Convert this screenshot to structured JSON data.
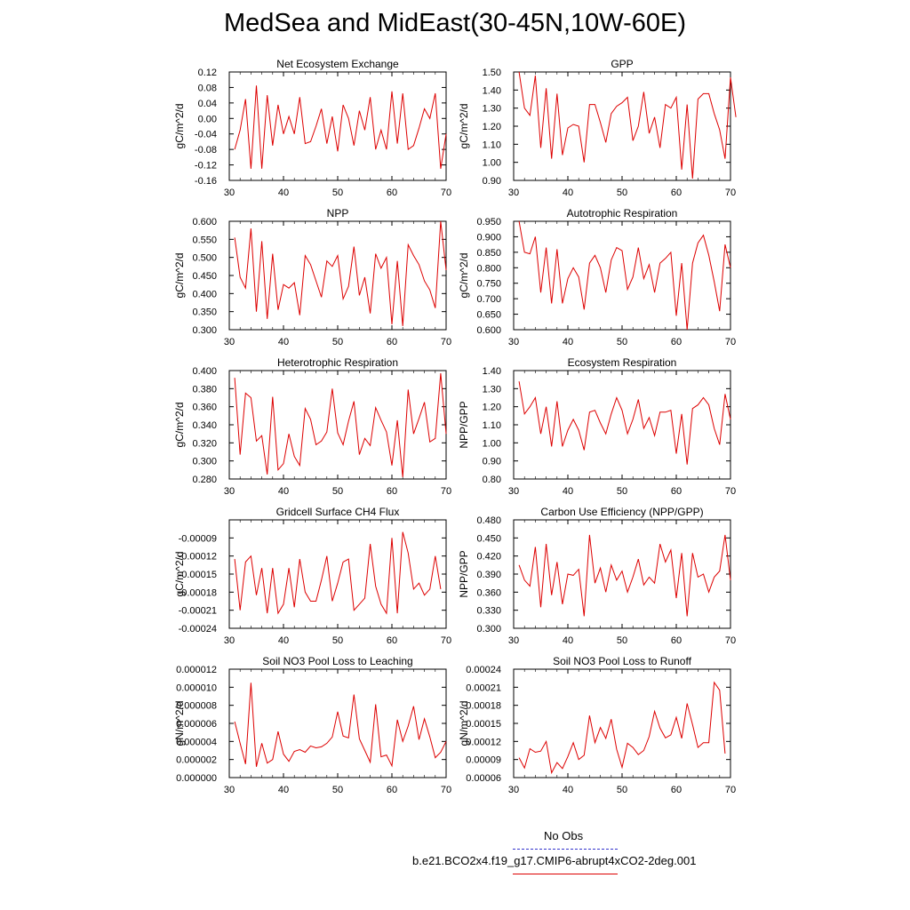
{
  "title": "MedSea and MidEast(30-45N,10W-60E)",
  "legend": {
    "obs_label": "No Obs",
    "obs_color": "#3333cc",
    "model_label": "b.e21.BCO2x4.f19_g17.CMIP6-abrupt4xCO2-2deg.001",
    "model_color": "#dd0000"
  },
  "chart_data": [
    {
      "type": "line",
      "title": "Net Ecosystem Exchange",
      "ylabel": "gC/m^2/d",
      "xlim": [
        30,
        70
      ],
      "ylim": [
        -0.16,
        0.12
      ],
      "xticks": [
        30,
        40,
        50,
        60,
        70
      ],
      "yticks": [
        "-0.16",
        "-0.12",
        "-0.08",
        "-0.04",
        "0.00",
        "0.04",
        "0.08",
        "0.12"
      ],
      "series": [
        {
          "color": "#dd0000",
          "x_start": 31,
          "values": [
            -0.08,
            -0.03,
            0.05,
            -0.13,
            0.085,
            -0.13,
            0.06,
            -0.07,
            0.035,
            -0.04,
            0.005,
            -0.04,
            0.055,
            -0.065,
            -0.06,
            -0.02,
            0.025,
            -0.065,
            0.005,
            -0.085,
            0.035,
            0.0,
            -0.07,
            0.02,
            -0.03,
            0.055,
            -0.08,
            -0.03,
            -0.08,
            0.07,
            -0.065,
            0.065,
            -0.08,
            -0.07,
            -0.025,
            0.025,
            0.0,
            0.065,
            -0.13,
            -0.04
          ]
        }
      ]
    },
    {
      "type": "line",
      "title": "GPP",
      "ylabel": "gC/m^2/d",
      "xlim": [
        30,
        70
      ],
      "ylim": [
        0.9,
        1.5
      ],
      "xticks": [
        30,
        40,
        50,
        60,
        70
      ],
      "yticks": [
        "0.90",
        "1.00",
        "1.10",
        "1.20",
        "1.30",
        "1.40",
        "1.50"
      ],
      "series": [
        {
          "color": "#dd0000",
          "x_start": 31,
          "values": [
            1.5,
            1.3,
            1.26,
            1.48,
            1.08,
            1.41,
            1.02,
            1.38,
            1.04,
            1.19,
            1.21,
            1.2,
            1.0,
            1.32,
            1.32,
            1.22,
            1.11,
            1.27,
            1.31,
            1.33,
            1.36,
            1.12,
            1.2,
            1.39,
            1.16,
            1.25,
            1.08,
            1.32,
            1.3,
            1.36,
            0.96,
            1.32,
            0.91,
            1.35,
            1.38,
            1.38,
            1.27,
            1.18,
            1.02,
            1.47,
            1.25
          ]
        }
      ]
    },
    {
      "type": "line",
      "title": "NPP",
      "ylabel": "gC/m^2/d",
      "xlim": [
        30,
        70
      ],
      "ylim": [
        0.3,
        0.6
      ],
      "xticks": [
        30,
        40,
        50,
        60,
        70
      ],
      "yticks": [
        "0.300",
        "0.350",
        "0.400",
        "0.450",
        "0.500",
        "0.550",
        "0.600"
      ],
      "series": [
        {
          "color": "#dd0000",
          "x_start": 31,
          "values": [
            0.555,
            0.445,
            0.415,
            0.58,
            0.35,
            0.545,
            0.33,
            0.51,
            0.355,
            0.425,
            0.415,
            0.43,
            0.34,
            0.505,
            0.48,
            0.435,
            0.39,
            0.49,
            0.475,
            0.505,
            0.385,
            0.42,
            0.53,
            0.395,
            0.445,
            0.345,
            0.51,
            0.47,
            0.5,
            0.315,
            0.49,
            0.31,
            0.535,
            0.505,
            0.48,
            0.435,
            0.41,
            0.36,
            0.6,
            0.465
          ]
        }
      ]
    },
    {
      "type": "line",
      "title": "Autotrophic Respiration",
      "ylabel": "gC/m^2/d",
      "xlim": [
        30,
        70
      ],
      "ylim": [
        0.6,
        0.95
      ],
      "xticks": [
        30,
        40,
        50,
        60,
        70
      ],
      "yticks": [
        "0.600",
        "0.650",
        "0.700",
        "0.750",
        "0.800",
        "0.850",
        "0.900",
        "0.950"
      ],
      "series": [
        {
          "color": "#dd0000",
          "x_start": 31,
          "values": [
            0.95,
            0.85,
            0.845,
            0.9,
            0.72,
            0.865,
            0.685,
            0.86,
            0.685,
            0.765,
            0.8,
            0.77,
            0.665,
            0.815,
            0.84,
            0.8,
            0.72,
            0.825,
            0.865,
            0.855,
            0.73,
            0.77,
            0.865,
            0.765,
            0.81,
            0.72,
            0.815,
            0.83,
            0.85,
            0.645,
            0.815,
            0.6,
            0.815,
            0.88,
            0.905,
            0.84,
            0.755,
            0.66,
            0.875,
            0.8
          ]
        }
      ]
    },
    {
      "type": "line",
      "title": "Heterotrophic Respiration",
      "ylabel": "gC/m^2/d",
      "xlim": [
        30,
        70
      ],
      "ylim": [
        0.28,
        0.4
      ],
      "xticks": [
        30,
        40,
        50,
        60,
        70
      ],
      "yticks": [
        "0.280",
        "0.300",
        "0.320",
        "0.340",
        "0.360",
        "0.380",
        "0.400"
      ],
      "series": [
        {
          "color": "#dd0000",
          "x_start": 31,
          "values": [
            0.392,
            0.307,
            0.375,
            0.37,
            0.322,
            0.328,
            0.285,
            0.371,
            0.29,
            0.297,
            0.33,
            0.305,
            0.295,
            0.358,
            0.346,
            0.318,
            0.322,
            0.332,
            0.38,
            0.331,
            0.318,
            0.344,
            0.366,
            0.307,
            0.325,
            0.317,
            0.359,
            0.345,
            0.332,
            0.295,
            0.345,
            0.282,
            0.379,
            0.33,
            0.347,
            0.365,
            0.321,
            0.325,
            0.397,
            0.33
          ]
        }
      ]
    },
    {
      "type": "line",
      "title": "Ecosystem Respiration",
      "ylabel": "NPP/GPP",
      "xlim": [
        30,
        70
      ],
      "ylim": [
        0.8,
        1.4
      ],
      "xticks": [
        30,
        40,
        50,
        60,
        70
      ],
      "yticks": [
        "0.80",
        "0.90",
        "1.00",
        "1.10",
        "1.20",
        "1.30",
        "1.40"
      ],
      "series": [
        {
          "color": "#dd0000",
          "x_start": 31,
          "values": [
            1.34,
            1.16,
            1.2,
            1.25,
            1.05,
            1.2,
            0.98,
            1.23,
            0.98,
            1.07,
            1.13,
            1.07,
            0.96,
            1.17,
            1.18,
            1.11,
            1.05,
            1.16,
            1.25,
            1.18,
            1.05,
            1.13,
            1.24,
            1.08,
            1.14,
            1.04,
            1.17,
            1.17,
            1.18,
            0.94,
            1.16,
            0.88,
            1.19,
            1.21,
            1.25,
            1.21,
            1.08,
            0.99,
            1.27,
            1.13
          ]
        }
      ]
    },
    {
      "type": "line",
      "title": "Gridcell Surface CH4 Flux",
      "ylabel": "gC/m^2/d",
      "xlim": [
        30,
        70
      ],
      "ylim": [
        -0.00024,
        -6e-05
      ],
      "xticks": [
        30,
        40,
        50,
        60,
        70
      ],
      "yticks": [
        "-0.00024",
        "-0.00021",
        "-0.00018",
        "-0.00015",
        "-0.00012",
        "-0.00009"
      ],
      "series": [
        {
          "color": "#dd0000",
          "x_start": 31,
          "values": [
            -0.000125,
            -0.00021,
            -0.00013,
            -0.00012,
            -0.000185,
            -0.00014,
            -0.000215,
            -0.00014,
            -0.000215,
            -0.0002,
            -0.00014,
            -0.000205,
            -0.000125,
            -0.00018,
            -0.000195,
            -0.000195,
            -0.00016,
            -0.00012,
            -0.000195,
            -0.000165,
            -0.00013,
            -0.000125,
            -0.00021,
            -0.0002,
            -0.00019,
            -0.0001,
            -0.00017,
            -0.0002,
            -0.000215,
            -9e-05,
            -0.000215,
            -8e-05,
            -0.000115,
            -0.000175,
            -0.000165,
            -0.000185,
            -0.000175,
            -0.00012,
            -0.000175
          ]
        }
      ]
    },
    {
      "type": "line",
      "title": "Carbon Use Efficiency (NPP/GPP)",
      "ylabel": "NPP/GPP",
      "xlim": [
        30,
        70
      ],
      "ylim": [
        0.3,
        0.48
      ],
      "xticks": [
        30,
        40,
        50,
        60,
        70
      ],
      "yticks": [
        "0.300",
        "0.330",
        "0.360",
        "0.390",
        "0.420",
        "0.450",
        "0.480"
      ],
      "series": [
        {
          "color": "#dd0000",
          "x_start": 31,
          "values": [
            0.405,
            0.38,
            0.37,
            0.435,
            0.335,
            0.44,
            0.355,
            0.41,
            0.34,
            0.39,
            0.388,
            0.398,
            0.32,
            0.455,
            0.375,
            0.4,
            0.36,
            0.405,
            0.38,
            0.395,
            0.36,
            0.385,
            0.415,
            0.372,
            0.385,
            0.375,
            0.44,
            0.41,
            0.43,
            0.35,
            0.425,
            0.32,
            0.425,
            0.385,
            0.39,
            0.36,
            0.385,
            0.395,
            0.455,
            0.38
          ]
        }
      ]
    },
    {
      "type": "line",
      "title": "Soil NO3 Pool Loss to Leaching",
      "ylabel": "gN/m^2/d",
      "xlim": [
        30,
        70
      ],
      "ylim": [
        0.0,
        1.2e-05
      ],
      "xticks": [
        30,
        40,
        50,
        60,
        70
      ],
      "yticks": [
        "0.000000",
        "0.000002",
        "0.000004",
        "0.000006",
        "0.000008",
        "0.000010",
        "0.000012"
      ],
      "series": [
        {
          "color": "#dd0000",
          "x_start": 31,
          "values": [
            6.2e-06,
            3.8e-06,
            1.5e-06,
            1.05e-05,
            1.2e-06,
            3.8e-06,
            1.6e-06,
            2e-06,
            5.1e-06,
            2.6e-06,
            1.8e-06,
            2.9e-06,
            3.1e-06,
            2.8e-06,
            3.5e-06,
            3.3e-06,
            3.4e-06,
            3.8e-06,
            4.5e-06,
            7.3e-06,
            4.6e-06,
            4.4e-06,
            9.2e-06,
            4.3e-06,
            3e-06,
            1.7e-06,
            8.1e-06,
            2.3e-06,
            2.5e-06,
            1.3e-06,
            6.4e-06,
            4e-06,
            5.7e-06,
            7.9e-06,
            4.2e-06,
            6.5e-06,
            4.5e-06,
            2.2e-06,
            2.8e-06,
            4e-06
          ]
        }
      ]
    },
    {
      "type": "line",
      "title": "Soil NO3 Pool Loss to Runoff",
      "ylabel": "gN/m^2/d",
      "xlim": [
        30,
        70
      ],
      "ylim": [
        6e-05,
        0.00024
      ],
      "xticks": [
        30,
        40,
        50,
        60,
        70
      ],
      "yticks": [
        "0.00006",
        "0.00009",
        "0.00012",
        "0.00015",
        "0.00018",
        "0.00021",
        "0.00024"
      ],
      "series": [
        {
          "color": "#dd0000",
          "x_start": 31,
          "values": [
            9.3e-05,
            7.6e-05,
            0.000108,
            0.000102,
            0.000104,
            0.00012,
            6.8e-05,
            8.5e-05,
            7.5e-05,
            9.5e-05,
            0.000118,
            9e-05,
            9.7e-05,
            0.000163,
            0.000118,
            0.000143,
            0.000125,
            0.000157,
            0.000107,
            7.7e-05,
            0.000117,
            0.00011,
            9.8e-05,
            0.000105,
            0.000128,
            0.00017,
            0.000142,
            0.000126,
            0.000131,
            0.00016,
            0.000125,
            0.000183,
            0.000148,
            0.00011,
            0.000118,
            0.000118,
            0.000218,
            0.000205,
            0.0001
          ]
        }
      ]
    }
  ]
}
